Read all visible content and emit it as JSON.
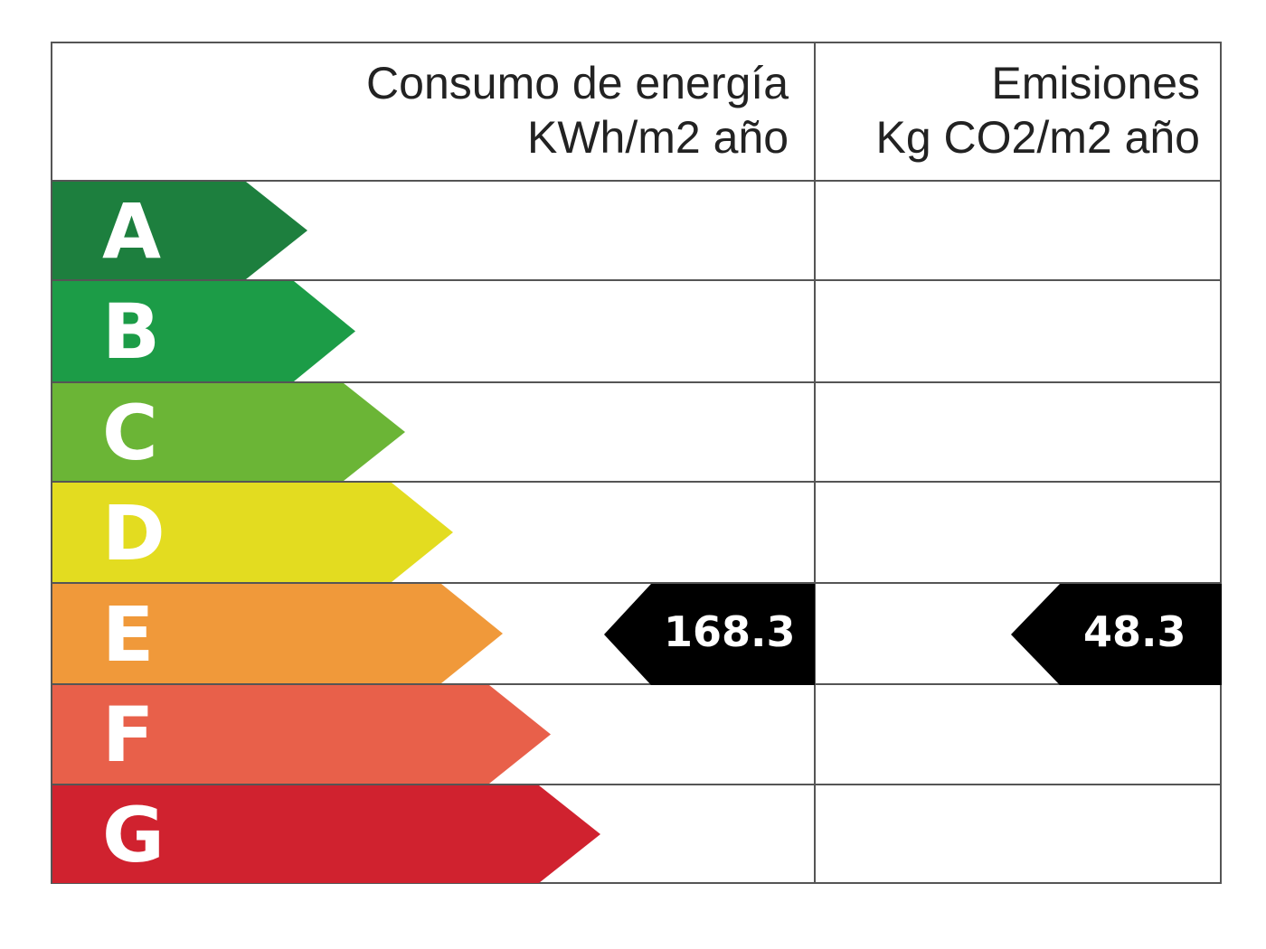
{
  "header": {
    "energy_line1": "Consumo de energía",
    "energy_line2": "KWh/m2 año",
    "emissions_line1": "Emisiones",
    "emissions_line2": "Kg CO2/m2 año"
  },
  "classes": [
    {
      "letter": "A",
      "color": "#1d7f3e"
    },
    {
      "letter": "B",
      "color": "#1c9c47"
    },
    {
      "letter": "C",
      "color": "#6bb536"
    },
    {
      "letter": "D",
      "color": "#e3dc20"
    },
    {
      "letter": "E",
      "color": "#f0993a"
    },
    {
      "letter": "F",
      "color": "#e8604a"
    },
    {
      "letter": "G",
      "color": "#d0222f"
    }
  ],
  "rating": {
    "class": "E",
    "energy_value": "168.3",
    "emissions_value": "48.3",
    "marker_color": "#000000"
  }
}
